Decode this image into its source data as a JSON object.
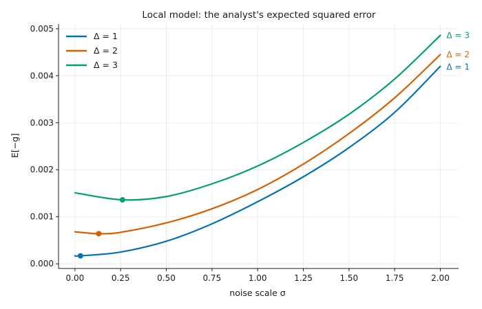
{
  "chart_data": {
    "type": "line",
    "title": "Local model: the analyst's expected squared error",
    "xlabel": "noise scale σ",
    "ylabel": "E[−g]",
    "xlim": [
      -0.09,
      2.1
    ],
    "ylim": [
      -0.0001,
      0.0051
    ],
    "xticks": [
      0.0,
      0.25,
      0.5,
      0.75,
      1.0,
      1.25,
      1.5,
      1.75,
      2.0
    ],
    "xtick_labels": [
      "0.00",
      "0.25",
      "0.50",
      "0.75",
      "1.00",
      "1.25",
      "1.50",
      "1.75",
      "2.00"
    ],
    "yticks": [
      0.0,
      0.001,
      0.002,
      0.003,
      0.004,
      0.005
    ],
    "ytick_labels": [
      "0.000",
      "0.001",
      "0.002",
      "0.003",
      "0.004",
      "0.005"
    ],
    "grid": true,
    "legend_position": "top-left",
    "series": [
      {
        "name": "Δ = 1",
        "color": "#0072b2",
        "x": [
          0.0,
          0.03,
          0.25,
          0.5,
          0.75,
          1.0,
          1.25,
          1.5,
          1.75,
          2.0
        ],
        "y": [
          0.000172,
          0.000169,
          0.00025,
          0.00048,
          0.00085,
          0.00132,
          0.00185,
          0.00247,
          0.00322,
          0.0042
        ],
        "min_point": {
          "x": 0.03,
          "y": 0.000169
        },
        "end_label": "Δ = 1"
      },
      {
        "name": "Δ = 2",
        "color": "#d55e00",
        "x": [
          0.0,
          0.13,
          0.25,
          0.5,
          0.75,
          1.0,
          1.25,
          1.5,
          1.75,
          2.0
        ],
        "y": [
          0.00068,
          0.00064,
          0.00067,
          0.00087,
          0.00117,
          0.00158,
          0.00212,
          0.00277,
          0.00353,
          0.00445
        ],
        "min_point": {
          "x": 0.13,
          "y": 0.00064
        },
        "end_label": "Δ = 2"
      },
      {
        "name": "Δ = 3",
        "color": "#009e73",
        "x": [
          0.0,
          0.26,
          0.5,
          0.75,
          1.0,
          1.25,
          1.5,
          1.75,
          2.0
        ],
        "y": [
          0.00151,
          0.00136,
          0.00143,
          0.0017,
          0.00208,
          0.00258,
          0.00318,
          0.00393,
          0.00486
        ],
        "min_point": {
          "x": 0.26,
          "y": 0.00136
        },
        "end_label": "Δ = 3"
      }
    ]
  }
}
